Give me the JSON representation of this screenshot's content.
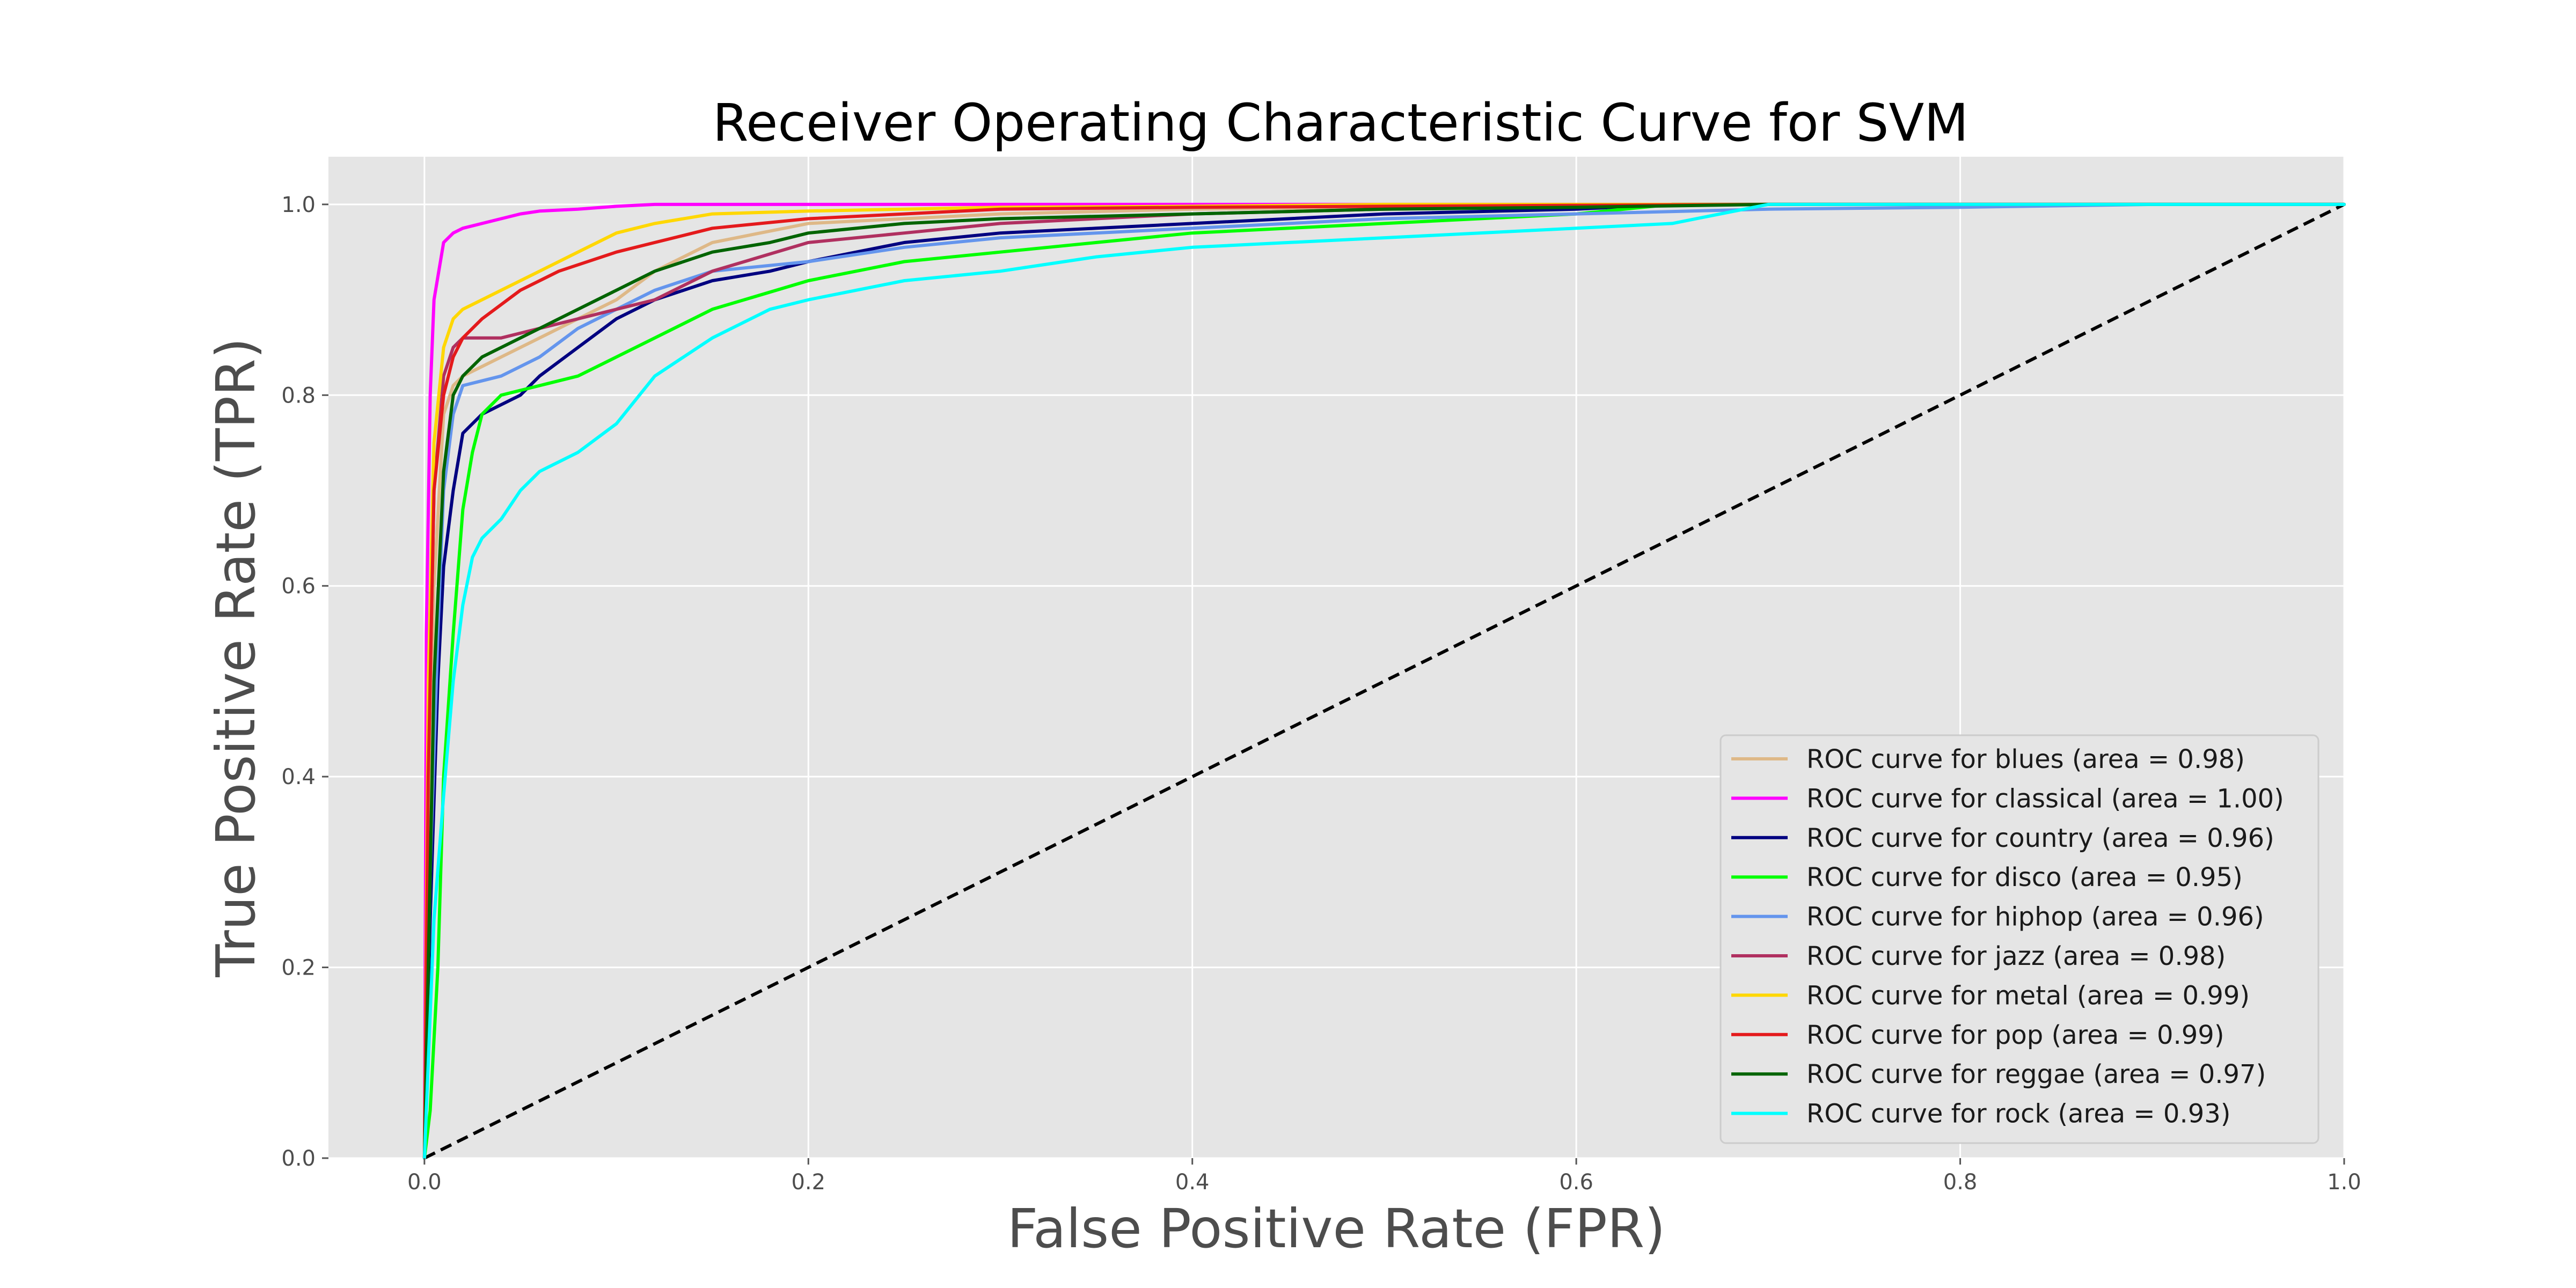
{
  "chart_data": {
    "type": "line",
    "title": "Receiver Operating Characteristic Curve for SVM",
    "xlabel": "False Positive Rate (FPR)",
    "ylabel": "True Positive Rate (TPR)",
    "xlim": [
      -0.05,
      1.0
    ],
    "ylim": [
      0.0,
      1.05
    ],
    "x_ticks": [
      "0.0",
      "0.2",
      "0.4",
      "0.6",
      "0.8",
      "1.0"
    ],
    "y_ticks": [
      "0.0",
      "0.2",
      "0.4",
      "0.6",
      "0.8",
      "1.0"
    ],
    "x_tick_values": [
      0.0,
      0.2,
      0.4,
      0.6,
      0.8,
      1.0
    ],
    "y_tick_values": [
      0.0,
      0.2,
      0.4,
      0.6,
      0.8,
      1.0
    ],
    "grid": true,
    "background": "#e5e5e5",
    "legend_position": "lower-right",
    "diagonal": {
      "x": [
        0,
        1
      ],
      "y": [
        0,
        1
      ],
      "color": "#000000",
      "style": "dashed"
    },
    "series": [
      {
        "name": "ROC curve for blues (area = 0.98)",
        "color": "#deb887",
        "x": [
          0,
          0.002,
          0.005,
          0.01,
          0.015,
          0.02,
          0.04,
          0.06,
          0.08,
          0.1,
          0.12,
          0.15,
          0.2,
          0.25,
          0.3,
          0.4,
          0.5,
          0.6,
          0.7,
          0.8,
          1.0
        ],
        "y": [
          0,
          0.35,
          0.6,
          0.78,
          0.81,
          0.82,
          0.84,
          0.86,
          0.88,
          0.9,
          0.93,
          0.96,
          0.98,
          0.985,
          0.99,
          0.995,
          0.997,
          0.999,
          1.0,
          1.0,
          1.0
        ]
      },
      {
        "name": "ROC curve for classical (area = 1.00)",
        "color": "#ff00ff",
        "x": [
          0,
          0.001,
          0.003,
          0.005,
          0.01,
          0.015,
          0.02,
          0.03,
          0.05,
          0.06,
          0.08,
          0.1,
          0.12,
          0.2,
          1.0
        ],
        "y": [
          0,
          0.55,
          0.8,
          0.9,
          0.96,
          0.97,
          0.975,
          0.98,
          0.99,
          0.993,
          0.995,
          0.998,
          1.0,
          1.0,
          1.0
        ]
      },
      {
        "name": "ROC curve for country (area = 0.96)",
        "color": "#000080",
        "x": [
          0,
          0.003,
          0.007,
          0.01,
          0.015,
          0.02,
          0.03,
          0.04,
          0.05,
          0.06,
          0.08,
          0.1,
          0.12,
          0.15,
          0.18,
          0.2,
          0.25,
          0.3,
          0.35,
          0.4,
          0.5,
          0.6,
          0.65,
          0.85,
          1.0
        ],
        "y": [
          0,
          0.25,
          0.5,
          0.62,
          0.7,
          0.76,
          0.78,
          0.79,
          0.8,
          0.82,
          0.85,
          0.88,
          0.9,
          0.92,
          0.93,
          0.94,
          0.96,
          0.97,
          0.975,
          0.98,
          0.99,
          0.995,
          1.0,
          1.0,
          1.0
        ]
      },
      {
        "name": "ROC curve for disco (area = 0.95)",
        "color": "#00ff00",
        "x": [
          0,
          0.003,
          0.007,
          0.01,
          0.015,
          0.02,
          0.025,
          0.03,
          0.04,
          0.06,
          0.08,
          0.1,
          0.12,
          0.15,
          0.2,
          0.25,
          0.3,
          0.35,
          0.4,
          0.45,
          0.5,
          0.6,
          0.65,
          1.0
        ],
        "y": [
          0,
          0.05,
          0.2,
          0.4,
          0.55,
          0.68,
          0.74,
          0.78,
          0.8,
          0.81,
          0.82,
          0.84,
          0.86,
          0.89,
          0.92,
          0.94,
          0.95,
          0.96,
          0.97,
          0.975,
          0.98,
          0.99,
          1.0,
          1.0
        ]
      },
      {
        "name": "ROC curve for hiphop (area = 0.96)",
        "color": "#6495ed",
        "x": [
          0,
          0.003,
          0.007,
          0.01,
          0.015,
          0.02,
          0.04,
          0.06,
          0.08,
          0.1,
          0.12,
          0.15,
          0.2,
          0.25,
          0.3,
          0.4,
          0.5,
          0.6,
          0.7,
          0.8,
          0.9,
          1.0
        ],
        "y": [
          0,
          0.3,
          0.55,
          0.7,
          0.78,
          0.81,
          0.82,
          0.84,
          0.87,
          0.89,
          0.91,
          0.93,
          0.94,
          0.955,
          0.965,
          0.975,
          0.985,
          0.99,
          0.995,
          0.997,
          1.0,
          1.0
        ]
      },
      {
        "name": "ROC curve for jazz (area = 0.98)",
        "color": "#b03060",
        "x": [
          0,
          0.002,
          0.005,
          0.01,
          0.015,
          0.02,
          0.04,
          0.06,
          0.08,
          0.1,
          0.12,
          0.15,
          0.2,
          0.25,
          0.3,
          0.4,
          0.5,
          0.6,
          0.7,
          1.0
        ],
        "y": [
          0,
          0.4,
          0.7,
          0.82,
          0.85,
          0.86,
          0.86,
          0.87,
          0.88,
          0.89,
          0.9,
          0.93,
          0.96,
          0.97,
          0.98,
          0.99,
          0.995,
          0.998,
          1.0,
          1.0
        ]
      },
      {
        "name": "ROC curve for metal (area = 0.99)",
        "color": "#ffd700",
        "x": [
          0,
          0.002,
          0.005,
          0.01,
          0.015,
          0.02,
          0.03,
          0.04,
          0.06,
          0.08,
          0.1,
          0.12,
          0.15,
          0.2,
          0.25,
          0.3,
          0.4,
          0.5,
          0.6,
          1.0
        ],
        "y": [
          0,
          0.5,
          0.75,
          0.85,
          0.88,
          0.89,
          0.9,
          0.91,
          0.93,
          0.95,
          0.97,
          0.98,
          0.99,
          0.993,
          0.995,
          0.997,
          0.998,
          1.0,
          1.0,
          1.0
        ]
      },
      {
        "name": "ROC curve for pop (area = 0.99)",
        "color": "#e41a1c",
        "x": [
          0,
          0.002,
          0.005,
          0.01,
          0.015,
          0.02,
          0.03,
          0.05,
          0.07,
          0.1,
          0.12,
          0.15,
          0.2,
          0.25,
          0.3,
          0.4,
          0.5,
          0.6,
          0.7,
          1.0
        ],
        "y": [
          0,
          0.4,
          0.7,
          0.8,
          0.84,
          0.86,
          0.88,
          0.91,
          0.93,
          0.95,
          0.96,
          0.975,
          0.985,
          0.99,
          0.995,
          0.997,
          0.998,
          0.999,
          1.0,
          1.0
        ]
      },
      {
        "name": "ROC curve for reggae (area = 0.97)",
        "color": "#006400",
        "x": [
          0,
          0.002,
          0.005,
          0.01,
          0.015,
          0.02,
          0.03,
          0.05,
          0.07,
          0.09,
          0.1,
          0.12,
          0.15,
          0.18,
          0.2,
          0.25,
          0.3,
          0.4,
          0.5,
          0.6,
          0.7,
          0.85,
          1.0
        ],
        "y": [
          0,
          0.2,
          0.5,
          0.72,
          0.8,
          0.82,
          0.84,
          0.86,
          0.88,
          0.9,
          0.91,
          0.93,
          0.95,
          0.96,
          0.97,
          0.98,
          0.985,
          0.99,
          0.995,
          0.997,
          1.0,
          1.0,
          1.0
        ]
      },
      {
        "name": "ROC curve for rock (area = 0.93)",
        "color": "#00ffff",
        "x": [
          0,
          0.002,
          0.005,
          0.01,
          0.015,
          0.02,
          0.025,
          0.03,
          0.04,
          0.05,
          0.06,
          0.08,
          0.1,
          0.12,
          0.15,
          0.18,
          0.2,
          0.25,
          0.3,
          0.35,
          0.4,
          0.5,
          0.6,
          0.65,
          0.7,
          1.0
        ],
        "y": [
          0,
          0.1,
          0.25,
          0.38,
          0.5,
          0.58,
          0.63,
          0.65,
          0.67,
          0.7,
          0.72,
          0.74,
          0.77,
          0.82,
          0.86,
          0.89,
          0.9,
          0.92,
          0.93,
          0.945,
          0.955,
          0.965,
          0.975,
          0.98,
          1.0,
          1.0
        ]
      }
    ]
  }
}
